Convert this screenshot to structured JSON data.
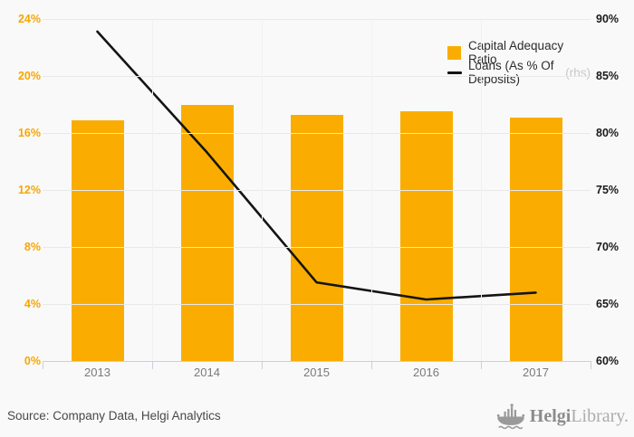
{
  "chart_data": {
    "type": "bar",
    "categories": [
      "2013",
      "2014",
      "2015",
      "2016",
      "2017"
    ],
    "series": [
      {
        "name": "Capital Adequacy Ratio",
        "type": "bar",
        "axis": "left",
        "values": [
          16.9,
          18.0,
          17.3,
          17.5,
          17.1
        ],
        "color": "#FAAD00"
      },
      {
        "name": "Loans (As % Of Deposits)",
        "type": "line",
        "axis": "right",
        "values": [
          88.9,
          78.3,
          66.9,
          65.4,
          66.0
        ],
        "color": "#141414"
      }
    ],
    "left_axis": {
      "min": 0,
      "max": 24,
      "ticks": [
        "0%",
        "4%",
        "8%",
        "12%",
        "16%",
        "20%",
        "24%"
      ],
      "label_color": "#F7A600"
    },
    "right_axis": {
      "min": 60,
      "max": 90,
      "ticks": [
        "60%",
        "65%",
        "70%",
        "75%",
        "80%",
        "85%",
        "90%"
      ],
      "label_color": "#1A1A1A"
    },
    "grid": true,
    "legend_position": "top-right"
  },
  "legend": {
    "items": [
      {
        "label": "Capital Adequacy Ratio",
        "suffix": ""
      },
      {
        "label": "Loans (As % Of Deposits)",
        "suffix": "(rhs)"
      }
    ]
  },
  "footer": {
    "source": "Source: Company Data, Helgi Analytics",
    "logo": {
      "brand_bold": "Helgi",
      "brand_light": "Library."
    }
  },
  "icons": {
    "logo": "helgi-ship-logo-icon"
  },
  "colors": {
    "background": "#F9F9F9",
    "bar": "#FAAD00",
    "line": "#141414",
    "gridline": "#E8E8E8",
    "axis_line": "#C8CFDE",
    "year_label": "#7A7A7A",
    "rhs_note": "#C8C8C8",
    "logo_gray": "#9A9A9A"
  }
}
